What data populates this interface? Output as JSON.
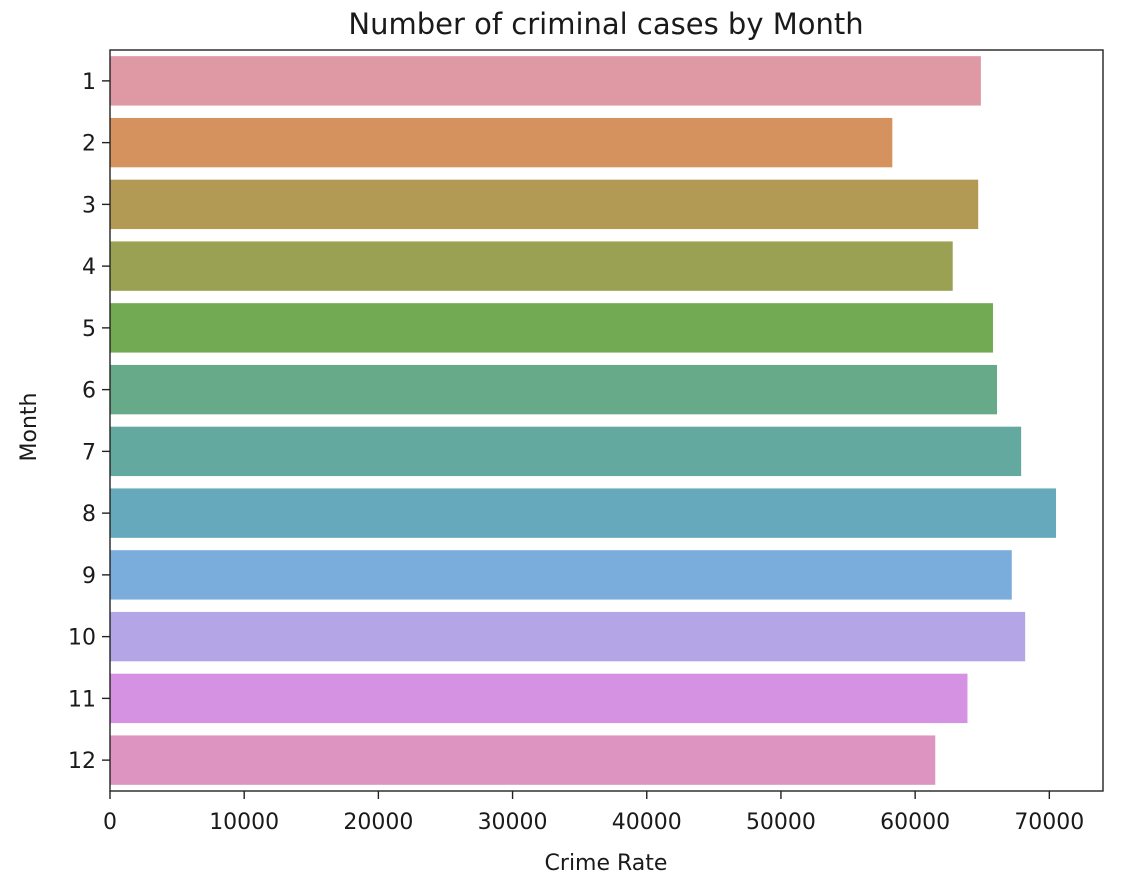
{
  "chart_data": {
    "type": "bar",
    "orientation": "horizontal",
    "title": "Number of criminal cases by Month",
    "xlabel": "Crime Rate",
    "ylabel": "Month",
    "categories": [
      "1",
      "2",
      "3",
      "4",
      "5",
      "6",
      "7",
      "8",
      "9",
      "10",
      "11",
      "12"
    ],
    "values": [
      64900,
      58300,
      64700,
      62800,
      65800,
      66100,
      67900,
      70500,
      67200,
      68200,
      63900,
      61500
    ],
    "colors": [
      "#df99a4",
      "#d6925e",
      "#b29a55",
      "#9aa152",
      "#72a953",
      "#66aa89",
      "#63a9a0",
      "#66a8bc",
      "#7aaddc",
      "#b4a6e6",
      "#d592e2",
      "#de94c0"
    ],
    "xlim": [
      0,
      74000
    ],
    "xticks": [
      0,
      10000,
      20000,
      30000,
      40000,
      50000,
      60000,
      70000
    ],
    "grid": false,
    "legend": "none"
  }
}
